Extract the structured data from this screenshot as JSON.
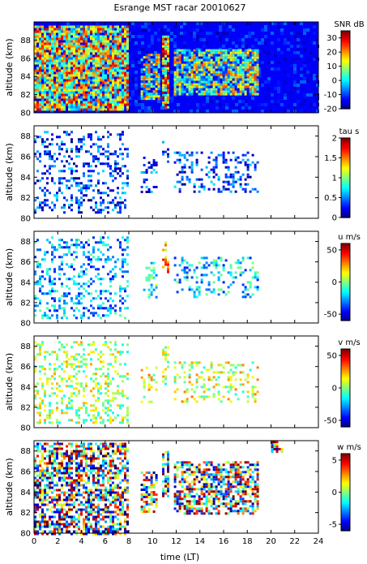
{
  "title": "Esrange MST racar 20010627",
  "xlabel": "time (LT)",
  "chart_data": [
    {
      "type": "heatmap",
      "panel": "snr",
      "ylabel": "altitude (km)",
      "ylim": [
        80,
        90
      ],
      "yticks": [
        80,
        82,
        84,
        86,
        88
      ],
      "xlim": [
        0,
        24
      ],
      "colorbar": {
        "label": "SNR dB",
        "range": [
          -20,
          35
        ],
        "ticks": [
          -20,
          -10,
          0,
          10,
          20,
          30
        ]
      },
      "fill": "full",
      "layers": [
        {
          "t0": 0.0,
          "t1": 7.8,
          "h0": 80.3,
          "h1": 89.6,
          "v": 12
        },
        {
          "t0": 9.0,
          "t1": 10.5,
          "h0": 81.5,
          "h1": 86.5,
          "v": 5
        },
        {
          "t0": 10.8,
          "t1": 11.4,
          "h0": 80.5,
          "h1": 88.5,
          "v": 16
        },
        {
          "t0": 11.8,
          "t1": 18.8,
          "h0": 82.0,
          "h1": 87.0,
          "v": 6
        }
      ]
    },
    {
      "type": "heatmap",
      "panel": "tau",
      "ylabel": "altitude (km)",
      "ylim": [
        80,
        89
      ],
      "yticks": [
        80,
        82,
        84,
        86,
        88
      ],
      "xlim": [
        0,
        24
      ],
      "colorbar": {
        "label": "tau s",
        "range": [
          0,
          2
        ],
        "ticks": [
          0,
          0.5,
          1,
          1.5,
          2
        ]
      },
      "fill": "sparse",
      "layers": [
        {
          "t0": 0.0,
          "t1": 7.8,
          "h0": 80.5,
          "h1": 88.5,
          "v": 0.35
        },
        {
          "t0": 9.0,
          "t1": 10.3,
          "h0": 82.5,
          "h1": 86.0,
          "v": 0.35
        },
        {
          "t0": 10.8,
          "t1": 11.4,
          "h0": 85.0,
          "h1": 88.0,
          "v": 0.3
        },
        {
          "t0": 11.8,
          "t1": 18.8,
          "h0": 82.5,
          "h1": 86.5,
          "v": 0.35
        }
      ]
    },
    {
      "type": "heatmap",
      "panel": "u",
      "ylabel": "altitude (km)",
      "ylim": [
        80,
        89
      ],
      "yticks": [
        80,
        82,
        84,
        86,
        88
      ],
      "xlim": [
        0,
        24
      ],
      "colorbar": {
        "label": "u m/s",
        "range": [
          -60,
          60
        ],
        "ticks": [
          -50,
          0,
          50
        ]
      },
      "fill": "sparse",
      "layers": [
        {
          "t0": 0.0,
          "t1": 7.8,
          "h0": 80.5,
          "h1": 88.5,
          "v": -25
        },
        {
          "t0": 9.0,
          "t1": 10.3,
          "h0": 82.5,
          "h1": 86.0,
          "v": -10
        },
        {
          "t0": 10.8,
          "t1": 11.4,
          "h0": 84.5,
          "h1": 88.0,
          "v": 25
        },
        {
          "t0": 11.8,
          "t1": 18.8,
          "h0": 82.5,
          "h1": 86.5,
          "v": -20
        }
      ]
    },
    {
      "type": "heatmap",
      "panel": "v",
      "ylabel": "altitude (km)",
      "ylim": [
        80,
        89
      ],
      "yticks": [
        80,
        82,
        84,
        86,
        88
      ],
      "xlim": [
        0,
        24
      ],
      "colorbar": {
        "label": "v m/s",
        "range": [
          -60,
          60
        ],
        "ticks": [
          -50,
          0,
          50
        ]
      },
      "fill": "sparse",
      "layers": [
        {
          "t0": 0.0,
          "t1": 7.8,
          "h0": 80.5,
          "h1": 88.5,
          "v": 5
        },
        {
          "t0": 9.0,
          "t1": 10.3,
          "h0": 82.5,
          "h1": 86.0,
          "v": 15
        },
        {
          "t0": 10.8,
          "t1": 11.4,
          "h0": 84.0,
          "h1": 88.0,
          "v": 5
        },
        {
          "t0": 11.8,
          "t1": 18.8,
          "h0": 82.5,
          "h1": 86.5,
          "v": 10
        }
      ]
    },
    {
      "type": "heatmap",
      "panel": "w",
      "ylabel": "altitude (km)",
      "ylim": [
        80,
        89
      ],
      "yticks": [
        80,
        82,
        84,
        86,
        88
      ],
      "xlim": [
        0,
        24
      ],
      "xticks": [
        0,
        2,
        4,
        6,
        8,
        10,
        12,
        14,
        16,
        18,
        20,
        22,
        24
      ],
      "colorbar": {
        "label": "w m/s",
        "range": [
          -6,
          6
        ],
        "ticks": [
          -5,
          0,
          5
        ]
      },
      "fill": "dense",
      "layers": [
        {
          "t0": 0.0,
          "t1": 7.8,
          "h0": 80.0,
          "h1": 88.8,
          "v": 0
        },
        {
          "t0": 9.0,
          "t1": 10.3,
          "h0": 82.0,
          "h1": 86.0,
          "v": -1
        },
        {
          "t0": 10.8,
          "t1": 11.4,
          "h0": 83.5,
          "h1": 88.0,
          "v": 1
        },
        {
          "t0": 11.8,
          "t1": 18.8,
          "h0": 82.0,
          "h1": 87.0,
          "v": 0.5
        },
        {
          "t0": 20.0,
          "t1": 21.0,
          "h0": 88.0,
          "h1": 89.0,
          "v": 2
        }
      ]
    }
  ]
}
